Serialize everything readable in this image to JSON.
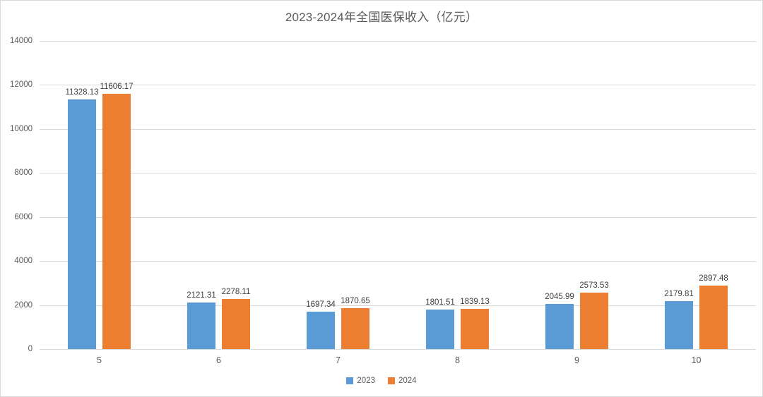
{
  "chart_data": {
    "type": "bar",
    "title": "2023-2024年全国医保收入（亿元）",
    "categories": [
      "5",
      "6",
      "7",
      "8",
      "9",
      "10"
    ],
    "series": [
      {
        "name": "2023",
        "color": "#5B9BD5",
        "values": [
          11328.13,
          2121.31,
          1697.34,
          1801.51,
          2045.99,
          2179.81
        ]
      },
      {
        "name": "2024",
        "color": "#ED7D31",
        "values": [
          11606.17,
          2278.11,
          1870.65,
          1839.13,
          2573.53,
          2897.48
        ]
      }
    ],
    "ylim": [
      0,
      14000
    ],
    "ytick_step": 2000,
    "ytick_labels": [
      "0",
      "2000",
      "4000",
      "6000",
      "8000",
      "10000",
      "12000",
      "14000"
    ],
    "xlabel": "",
    "ylabel": "",
    "grid": "horizontal",
    "legend_position": "bottom",
    "data_labels": true,
    "colors": {
      "grid": "#d9d9d9",
      "axis_text": "#595959",
      "label_text": "#404040",
      "title_text": "#595959"
    }
  }
}
